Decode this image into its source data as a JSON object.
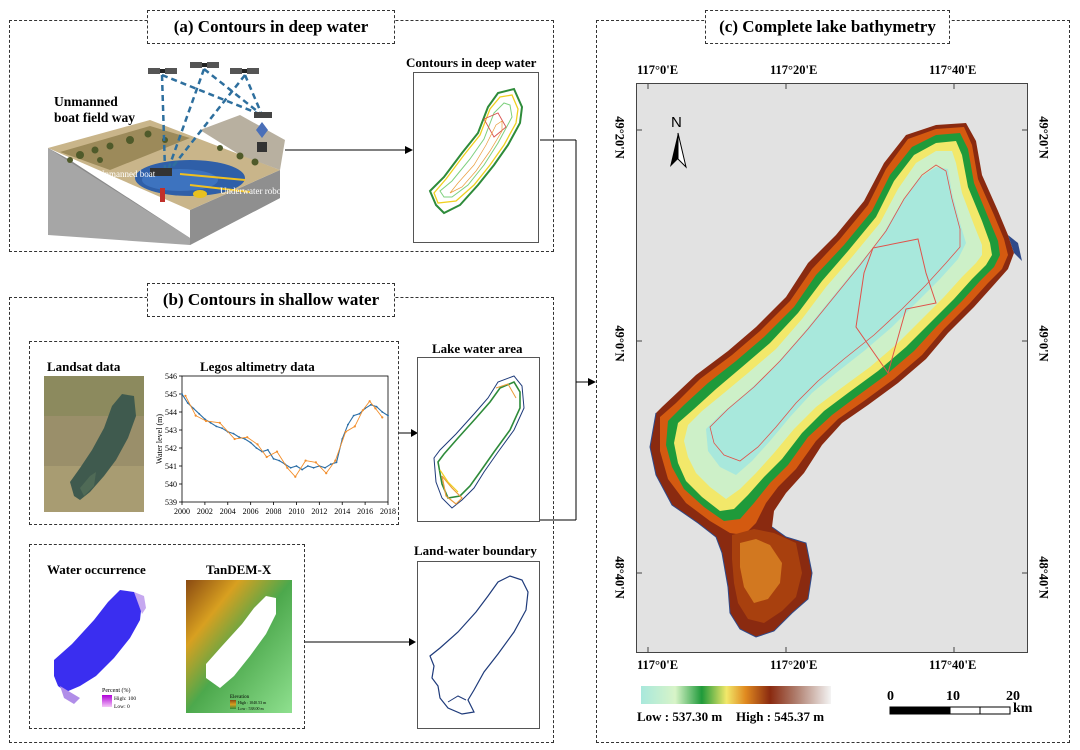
{
  "panel_a": {
    "title": "(a) Contours in deep water",
    "left_label": "Unmanned\nboat field way",
    "boat_label": "Unmanned boat",
    "robot_label": "Underwater robot",
    "result_label": "Contours in deep water"
  },
  "panel_b": {
    "title": "(b) Contours in shallow water",
    "landsat_label": "Landsat data",
    "legos_label": "Legos altimetry data",
    "lake_area_label": "Lake water area",
    "occurrence_label": "Water occurrence",
    "tandem_label": "TanDEM-X",
    "boundary_label": "Land-water boundary",
    "occurrence_legend_title": "Percent (%)",
    "occurrence_legend_high": "High: 100",
    "occurrence_legend_low": "Low: 0",
    "tandem_legend_title": "Elevation",
    "tandem_legend_high": "High : 1040.53 m",
    "tandem_legend_low": "Low : 538.00 m"
  },
  "panel_c": {
    "title": "(c) Complete lake bathymetry",
    "lon_labels": [
      "117°0'E",
      "117°20'E",
      "117°40'E"
    ],
    "lat_labels": [
      "49°20'N",
      "49°0'N",
      "48°40'N"
    ],
    "north": "N",
    "legend_low": "Low : 537.30 m",
    "legend_high": "High : 545.37 m",
    "scale_ticks": [
      "0",
      "10",
      "20"
    ],
    "scale_unit": "km"
  },
  "chart_data": {
    "type": "line",
    "title": "Legos altimetry data",
    "xlabel": "",
    "ylabel": "Water level (m)",
    "xlim": [
      2000,
      2018
    ],
    "ylim": [
      539,
      546
    ],
    "xticks": [
      "2000",
      "2002",
      "2004",
      "2006",
      "2008",
      "2010",
      "2012",
      "2014",
      "2016",
      "2018"
    ],
    "yticks": [
      "539",
      "540",
      "541",
      "542",
      "543",
      "544",
      "545",
      "546"
    ],
    "series": [
      {
        "color": "#2b6ea6",
        "x": [
          2000,
          2000.5,
          2001,
          2001.5,
          2002,
          2002.5,
          2003,
          2003.5,
          2004,
          2004.5,
          2005,
          2005.5,
          2006,
          2006.5,
          2007,
          2007.5,
          2008,
          2008.5,
          2009,
          2009.5,
          2010,
          2010.5,
          2011,
          2011.5,
          2012,
          2012.5,
          2013,
          2013.5,
          2014,
          2014.5,
          2015,
          2015.5,
          2016,
          2016.5,
          2017,
          2017.5,
          2018
        ],
        "values": [
          545.0,
          544.5,
          544.2,
          543.9,
          543.6,
          543.4,
          543.2,
          543.1,
          542.9,
          542.8,
          542.6,
          542.5,
          542.3,
          542.0,
          541.8,
          541.9,
          541.4,
          541.3,
          541.1,
          540.9,
          541.0,
          540.8,
          541.0,
          540.9,
          541.0,
          540.9,
          541.1,
          541.2,
          542.5,
          543.3,
          543.8,
          543.9,
          544.2,
          544.4,
          544.3,
          544.0,
          543.8
        ]
      },
      {
        "color": "#f28e2b",
        "x": [
          2000.3,
          2001.2,
          2002.1,
          2003.3,
          2004.6,
          2005.7,
          2006.6,
          2007.4,
          2008.3,
          2009.2,
          2009.9,
          2010.8,
          2011.7,
          2012.6,
          2013.4,
          2014.3,
          2015.1,
          2015.8,
          2016.4,
          2016.9,
          2017.5
        ],
        "values": [
          544.9,
          543.8,
          543.5,
          543.4,
          542.5,
          542.6,
          542.2,
          541.5,
          541.8,
          540.9,
          540.4,
          541.3,
          541.2,
          540.6,
          541.3,
          542.9,
          543.2,
          544.1,
          544.6,
          544.2,
          543.7
        ]
      }
    ]
  }
}
